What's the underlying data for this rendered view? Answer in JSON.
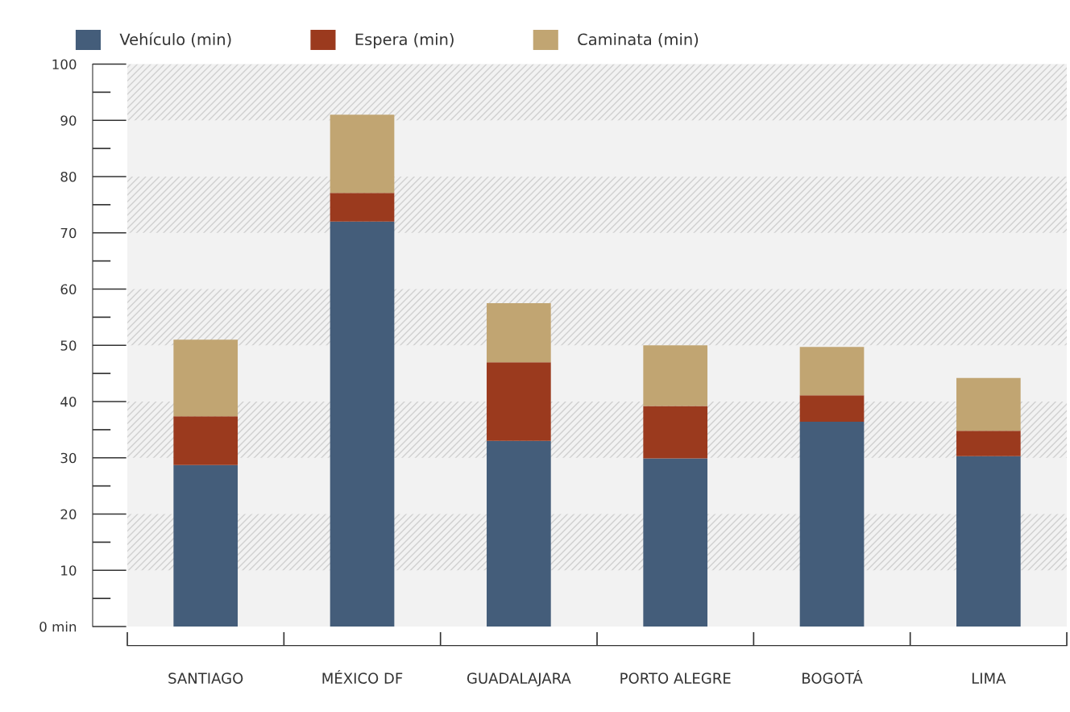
{
  "chart_data": {
    "type": "bar",
    "stacked": true,
    "categories": [
      "SANTIAGO",
      "MÉXICO DF",
      "GUADALAJARA",
      "PORTO ALEGRE",
      "BOGOTÁ",
      "LIMA"
    ],
    "series": [
      {
        "name": "Vehículo (min)",
        "color": "#445d7a",
        "values": [
          28.7,
          72.0,
          33.0,
          29.9,
          36.4,
          30.3
        ]
      },
      {
        "name": "Espera (min)",
        "color": "#9b3a1e",
        "values": [
          8.7,
          5.1,
          14.0,
          9.3,
          4.7,
          4.5
        ]
      },
      {
        "name": "Caminata (min)",
        "color": "#c1a572",
        "values": [
          13.6,
          13.9,
          10.5,
          10.8,
          8.6,
          9.4
        ]
      }
    ],
    "ylim": [
      0,
      100
    ],
    "yticks": [
      {
        "value": 0,
        "label": "0 min"
      },
      10,
      20,
      30,
      40,
      50,
      60,
      70,
      80,
      90,
      100
    ],
    "bands": [
      {
        "axis": "y",
        "from": 10,
        "to": 20,
        "color": "#f2f2f2"
      },
      {
        "axis": "y",
        "from": 30,
        "to": 40,
        "color": "#f2f2f2"
      },
      {
        "axis": "y",
        "from": 50,
        "to": 60,
        "color": "#f2f2f2"
      },
      {
        "axis": "y",
        "from": 70,
        "to": 80,
        "color": "#f2f2f2"
      },
      {
        "axis": "y",
        "from": 90,
        "to": 100,
        "color": "#f2f2f2"
      }
    ],
    "grid": false,
    "legend": "top left"
  }
}
